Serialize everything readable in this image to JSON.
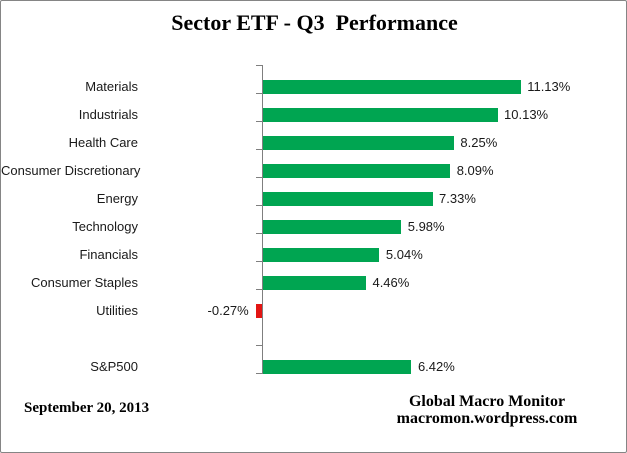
{
  "title": "Sector ETF - Q3  Performance",
  "footer": {
    "date": "September 20, 2013",
    "source_line1": "Global Macro Monitor",
    "source_line2": "macromon.wordpress.com"
  },
  "colors": {
    "positive_bar": "#00A551",
    "negative_bar": "#E31513",
    "axis": "#7F7F7F",
    "frame_border": "#858585"
  },
  "chart_data": {
    "type": "bar",
    "orientation": "horizontal",
    "title": "Sector ETF - Q3  Performance",
    "xlabel": "",
    "ylabel": "",
    "xlim": [
      -1,
      12
    ],
    "unit": "percent",
    "grid": false,
    "legend": false,
    "categories": [
      "Materials",
      "Industrials",
      "Health Care",
      "Consumer Discretionary",
      "Energy",
      "Technology",
      "Financials",
      "Consumer Staples",
      "Utilities",
      "",
      "S&P500"
    ],
    "values": [
      11.13,
      10.13,
      8.25,
      8.09,
      7.33,
      5.98,
      5.04,
      4.46,
      -0.27,
      null,
      6.42
    ],
    "value_labels": [
      "11.13%",
      "10.13%",
      "8.25%",
      "8.09%",
      "7.33%",
      "5.98%",
      "5.04%",
      "4.46%",
      "-0.27%",
      null,
      "6.42%"
    ],
    "notes": "blank category row separates sector ETFs from S&P500 benchmark; negative value drawn left of axis in red"
  }
}
